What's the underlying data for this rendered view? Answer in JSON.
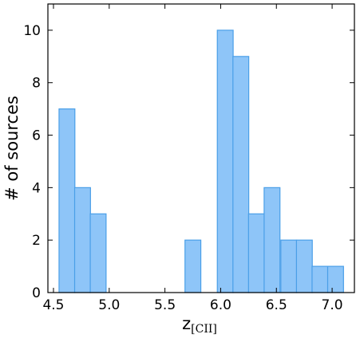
{
  "chart_data": {
    "type": "bar",
    "subtype": "histogram",
    "title": "",
    "xlabel": "z",
    "xlabel_subscript": "[CII]",
    "ylabel": "# of sources",
    "xlim": [
      4.45,
      7.2
    ],
    "ylim": [
      0,
      11
    ],
    "grid": false,
    "legend": "none",
    "xticks": [
      4.5,
      5.0,
      5.5,
      6.0,
      6.5,
      7.0
    ],
    "xtick_labels": [
      "4.5",
      "5.0",
      "5.5",
      "6.0",
      "6.5",
      "7.0"
    ],
    "yticks": [
      0,
      2,
      4,
      6,
      8,
      10
    ],
    "ytick_labels": [
      "0",
      "2",
      "4",
      "6",
      "8",
      "10"
    ],
    "bin_width": 0.142,
    "bins": [
      {
        "start": 4.55,
        "count": 7
      },
      {
        "start": 4.69,
        "count": 4
      },
      {
        "start": 4.83,
        "count": 3
      },
      {
        "start": 5.68,
        "count": 2
      },
      {
        "start": 5.97,
        "count": 10
      },
      {
        "start": 6.11,
        "count": 9
      },
      {
        "start": 6.25,
        "count": 3
      },
      {
        "start": 6.39,
        "count": 4
      },
      {
        "start": 6.54,
        "count": 2
      },
      {
        "start": 6.68,
        "count": 2
      },
      {
        "start": 6.82,
        "count": 1
      },
      {
        "start": 6.96,
        "count": 1
      }
    ],
    "colors": {
      "bar_fill": "#8ec5f8",
      "bar_edge": "#4a9fe8",
      "axis": "#000000"
    }
  }
}
